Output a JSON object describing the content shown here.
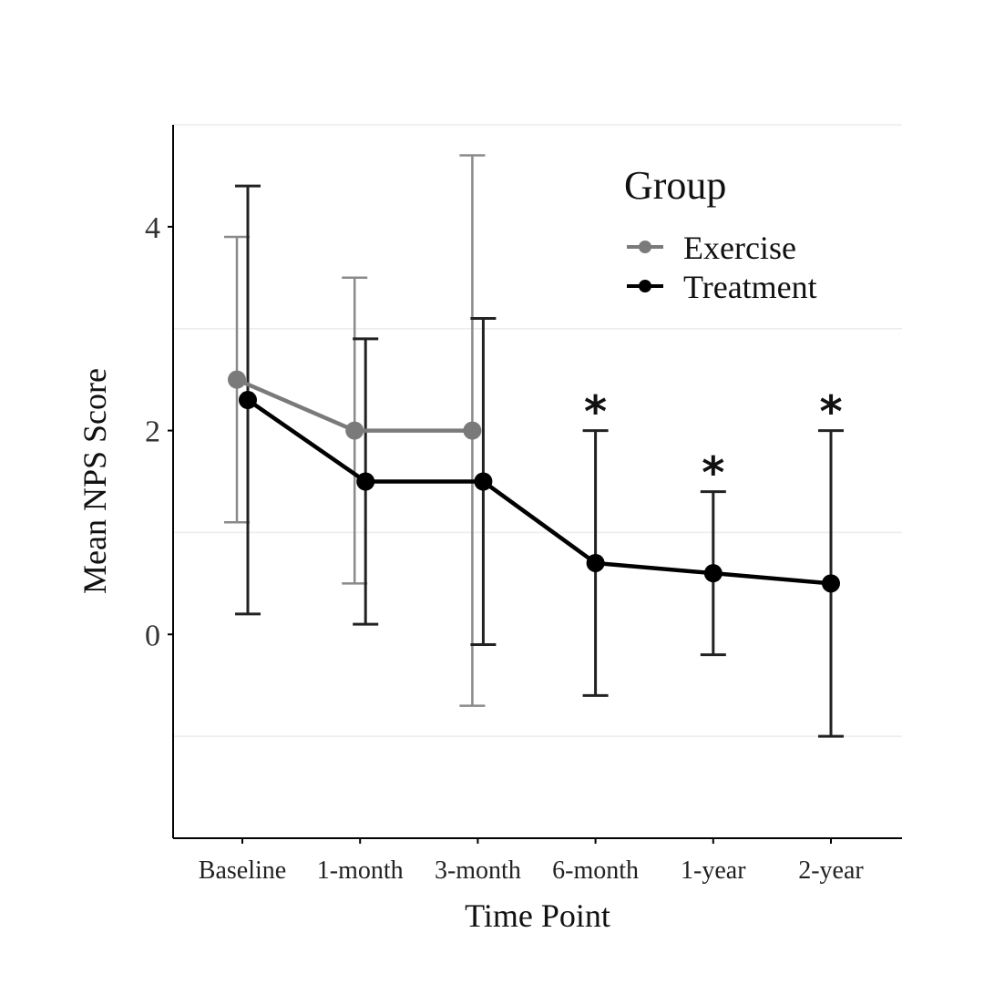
{
  "chart_data": {
    "type": "line",
    "title": "",
    "xlabel": "Time Point",
    "ylabel": "Mean NPS Score",
    "categories": [
      "Baseline",
      "1-month",
      "3-month",
      "6-month",
      "1-year",
      "2-year"
    ],
    "ylim": [
      -2,
      5
    ],
    "yticks": [
      0,
      2,
      4
    ],
    "ytick_labels": [
      "0",
      "2",
      "4"
    ],
    "grid": "horizontal minor lines at -1, 1, 3, 5",
    "legend": {
      "title": "Group",
      "placement": "top-right"
    },
    "series": [
      {
        "name": "Exercise",
        "color": "#7a7a7a",
        "values": [
          2.5,
          2.0,
          2.0,
          null,
          null,
          null
        ],
        "error_low": [
          1.1,
          0.5,
          -0.7,
          null,
          null,
          null
        ],
        "error_high": [
          3.9,
          3.5,
          4.7,
          null,
          null,
          null
        ]
      },
      {
        "name": "Treatment",
        "color": "#000000",
        "values": [
          2.3,
          1.5,
          1.5,
          0.7,
          0.6,
          0.5
        ],
        "error_low": [
          0.2,
          0.1,
          -0.1,
          -0.6,
          -0.2,
          -1.0
        ],
        "error_high": [
          4.4,
          2.9,
          3.1,
          2.0,
          1.4,
          2.0
        ]
      }
    ],
    "annotations": [
      {
        "category": "6-month",
        "text": "*"
      },
      {
        "category": "1-year",
        "text": "*"
      },
      {
        "category": "2-year",
        "text": "*"
      }
    ]
  }
}
